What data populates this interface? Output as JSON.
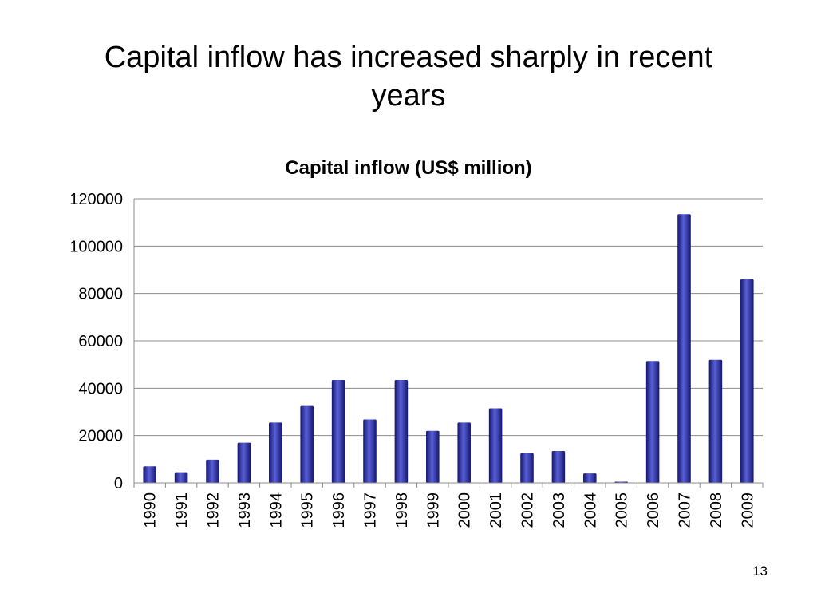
{
  "slide": {
    "title": "Capital inflow has increased sharply in recent years",
    "number": "13"
  },
  "colors": {
    "bar": "#2b2ea8",
    "bar_dark": "#141770",
    "bar_light": "#5a5fd6",
    "grid": "#8c8c8c",
    "axis": "#8c8c8c"
  },
  "chart_data": {
    "type": "bar",
    "title": "Capital inflow (US$ million)",
    "xlabel": "",
    "ylabel": "",
    "categories": [
      "1990",
      "1991",
      "1992",
      "1993",
      "1994",
      "1995",
      "1996",
      "1997",
      "1998",
      "1999",
      "2000",
      "2001",
      "2002",
      "2003",
      "2004",
      "2005",
      "2006",
      "2007",
      "2008",
      "2009"
    ],
    "values": [
      7000,
      4500,
      9800,
      17000,
      25500,
      32500,
      43500,
      26800,
      43500,
      22000,
      25500,
      31500,
      12500,
      13500,
      4000,
      500,
      51500,
      113500,
      52000,
      86000
    ],
    "ylim": [
      0,
      120000
    ],
    "yticks": [
      "0",
      "20000",
      "40000",
      "60000",
      "80000",
      "100000",
      "120000"
    ],
    "grid": true,
    "legend": "none"
  }
}
